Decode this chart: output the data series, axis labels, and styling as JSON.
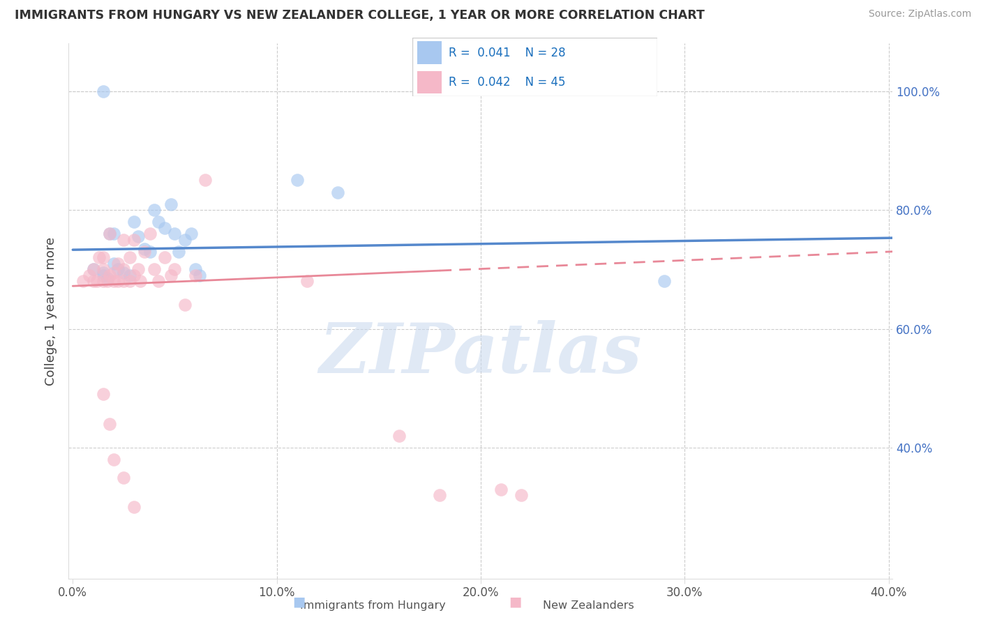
{
  "title": "IMMIGRANTS FROM HUNGARY VS NEW ZEALANDER COLLEGE, 1 YEAR OR MORE CORRELATION CHART",
  "source": "Source: ZipAtlas.com",
  "ylabel": "College, 1 year or more",
  "legend_label1": "Immigrants from Hungary",
  "legend_label2": "New Zealanders",
  "legend_R1": "R = 0.041",
  "legend_N1": "N = 28",
  "legend_R2": "R = 0.042",
  "legend_N2": "N = 45",
  "xlim": [
    -0.002,
    0.402
  ],
  "ylim": [
    0.18,
    1.08
  ],
  "xticks": [
    0.0,
    0.1,
    0.2,
    0.3,
    0.4
  ],
  "yticks": [
    0.4,
    0.6,
    0.8,
    1.0
  ],
  "xtick_labels": [
    "0.0%",
    "10.0%",
    "20.0%",
    "30.0%",
    "40.0%"
  ],
  "ytick_labels_right": [
    "40.0%",
    "60.0%",
    "80.0%",
    "100.0%"
  ],
  "color_blue": "#A8C8F0",
  "color_pink": "#F5B8C8",
  "color_line_blue": "#5588CC",
  "color_line_pink": "#E88898",
  "watermark": "ZIPatlas",
  "blue_x": [
    0.01,
    0.015,
    0.015,
    0.017,
    0.018,
    0.02,
    0.02,
    0.022,
    0.025,
    0.028,
    0.03,
    0.032,
    0.035,
    0.038,
    0.04,
    0.042,
    0.045,
    0.048,
    0.05,
    0.052,
    0.055,
    0.058,
    0.06,
    0.062,
    0.11,
    0.13,
    0.29,
    0.015
  ],
  "blue_y": [
    0.7,
    0.695,
    0.69,
    0.685,
    0.76,
    0.76,
    0.71,
    0.7,
    0.695,
    0.69,
    0.78,
    0.755,
    0.735,
    0.73,
    0.8,
    0.78,
    0.77,
    0.81,
    0.76,
    0.73,
    0.75,
    0.76,
    0.7,
    0.69,
    0.85,
    0.83,
    0.68,
    1.0
  ],
  "pink_x": [
    0.005,
    0.008,
    0.01,
    0.01,
    0.012,
    0.013,
    0.015,
    0.015,
    0.015,
    0.017,
    0.018,
    0.018,
    0.02,
    0.02,
    0.022,
    0.022,
    0.025,
    0.025,
    0.025,
    0.028,
    0.028,
    0.03,
    0.03,
    0.032,
    0.033,
    0.035,
    0.038,
    0.04,
    0.042,
    0.045,
    0.048,
    0.05,
    0.055,
    0.06,
    0.065,
    0.115,
    0.16,
    0.18,
    0.21,
    0.22,
    0.015,
    0.018,
    0.02,
    0.025,
    0.03
  ],
  "pink_y": [
    0.68,
    0.69,
    0.68,
    0.7,
    0.68,
    0.72,
    0.68,
    0.7,
    0.72,
    0.68,
    0.69,
    0.76,
    0.68,
    0.695,
    0.68,
    0.71,
    0.68,
    0.7,
    0.75,
    0.68,
    0.72,
    0.69,
    0.75,
    0.7,
    0.68,
    0.73,
    0.76,
    0.7,
    0.68,
    0.72,
    0.69,
    0.7,
    0.64,
    0.69,
    0.85,
    0.68,
    0.42,
    0.32,
    0.33,
    0.32,
    0.49,
    0.44,
    0.38,
    0.35,
    0.3
  ],
  "blue_line_x0": 0.0,
  "blue_line_x1": 0.402,
  "blue_line_y0": 0.733,
  "blue_line_y1": 0.753,
  "pink_line_solid_x0": 0.0,
  "pink_line_solid_x1": 0.18,
  "pink_line_dashed_x0": 0.18,
  "pink_line_dashed_x1": 0.402,
  "pink_line_y0": 0.672,
  "pink_line_y1": 0.73
}
